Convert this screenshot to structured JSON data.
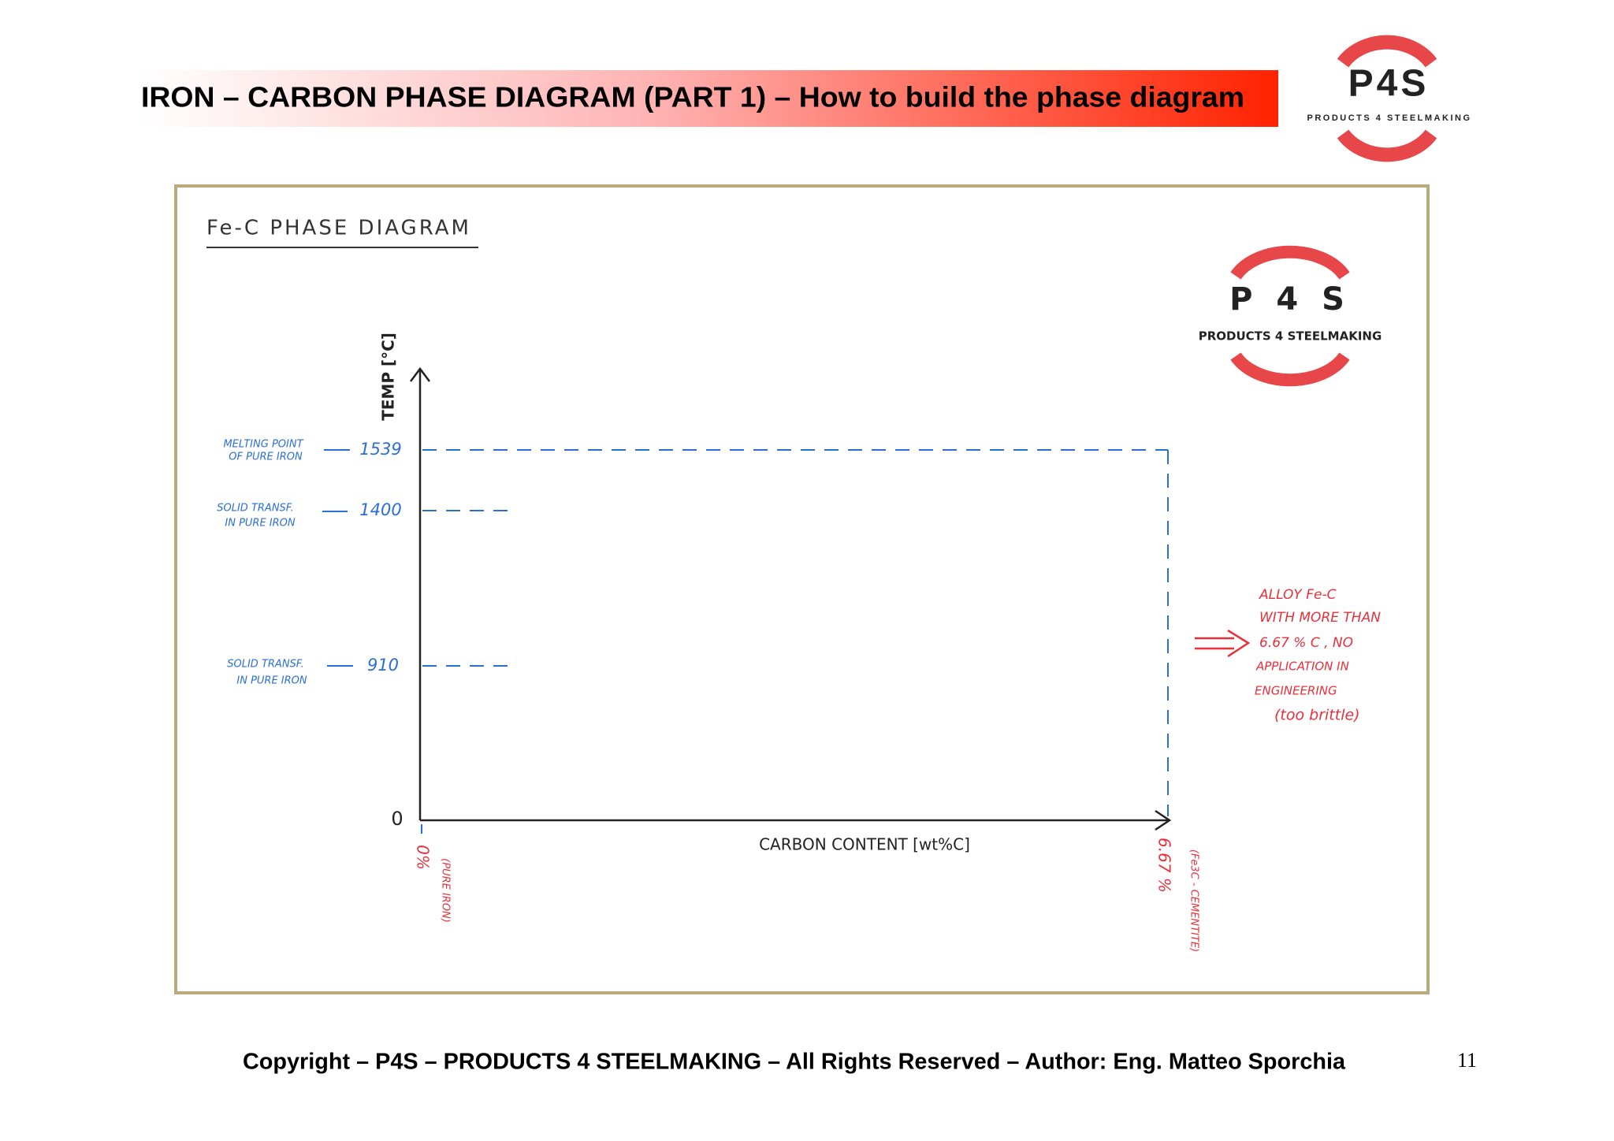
{
  "header": {
    "title": "IRON – CARBON PHASE DIAGRAM (PART 1) – How to build the phase diagram"
  },
  "logo": {
    "name": "P4S",
    "tagline": "PRODUCTS 4 STEELMAKING"
  },
  "diagram": {
    "title": "Fe-C PHASE DIAGRAM",
    "logo": {
      "name": "P 4 S",
      "tagline": "PRODUCTS 4 STEELMAKING"
    },
    "y_axis_label": "TEMP [°C]",
    "x_axis_label": "CARBON CONTENT [wt%C]",
    "levels": [
      {
        "value": "1539",
        "note": [
          "MELTING POINT",
          "OF PURE IRON"
        ]
      },
      {
        "value": "1400",
        "note": [
          "SOLID TRANSF.",
          "IN PURE IRON"
        ]
      },
      {
        "value": "910",
        "note": [
          "SOLID TRANSF.",
          "IN PURE IRON"
        ]
      }
    ],
    "origin": "0",
    "x_start": {
      "label": "0%",
      "note": "(PURE IRON)"
    },
    "x_end": {
      "label": "6.67 %",
      "note": "(Fe3C - CEMENTITE)"
    },
    "right_note": [
      "ALLOY Fe-C",
      "WITH MORE THAN",
      "6.67 % C , NO",
      "APPLICATION IN",
      "ENGINEERING",
      "(too brittle)"
    ]
  },
  "footer": {
    "copyright": "Copyright – P4S – PRODUCTS 4 STEELMAKING – All Rights Reserved – Author: Eng. Matteo Sporchia",
    "page": "11"
  }
}
